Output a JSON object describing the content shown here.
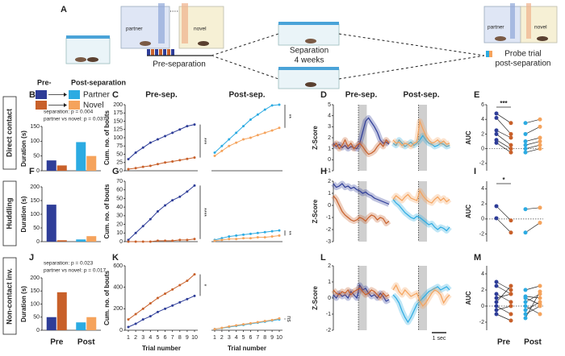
{
  "figure": {
    "panel_A": "A",
    "cage_labels": [
      "partner",
      "novel",
      "partner",
      "novel"
    ],
    "pre_step": "Pre-separation",
    "separation": [
      "Separation",
      "4 weeks"
    ],
    "probe": [
      "Probe trial",
      "post-separation"
    ],
    "legend": {
      "pre_label": "Pre-",
      "post_label": "Post-separation",
      "items": [
        {
          "name": "Partner",
          "pre_color": "#2e3d98",
          "post_color": "#2cabe2"
        },
        {
          "name": "Novel",
          "pre_color": "#c8602a",
          "post_color": "#f5a35c"
        }
      ]
    },
    "rows": [
      "Direct contact",
      "Huddling",
      "Non-contact inv."
    ]
  },
  "chart_data": [
    {
      "type": "bar",
      "panel": "B",
      "ylabel": "Duration (s)",
      "annotations": [
        "separation: p = 0.004",
        "partner vs novel: p = 0.037"
      ],
      "ylim": [
        0,
        150
      ],
      "yticks": [
        0,
        50,
        100,
        150
      ],
      "series": [
        {
          "colors": [
            "#2e3d98",
            "#2cabe2"
          ],
          "values": [
            35,
            97
          ]
        },
        {
          "colors": [
            "#c8602a",
            "#f5a35c"
          ],
          "values": [
            18,
            50
          ]
        }
      ]
    },
    {
      "type": "bar",
      "panel": "F",
      "ylabel": "Duration (s)",
      "ylim": [
        0,
        200
      ],
      "yticks": [
        0,
        50,
        100,
        150,
        200
      ],
      "series": [
        {
          "colors": [
            "#2e3d98",
            "#2cabe2"
          ],
          "values": [
            135,
            8
          ]
        },
        {
          "colors": [
            "#c8602a",
            "#f5a35c"
          ],
          "values": [
            5,
            20
          ]
        }
      ]
    },
    {
      "type": "bar",
      "panel": "J",
      "ylabel": "Duration (s)",
      "annotations": [
        "separation: p = 0.023",
        "partner vs novel: p = 0.017"
      ],
      "categories": [
        "Pre",
        "Post"
      ],
      "ylim": [
        0,
        200
      ],
      "yticks": [
        0,
        50,
        100,
        150,
        200
      ],
      "series": [
        {
          "colors": [
            "#2e3d98",
            "#2cabe2"
          ],
          "values": [
            50,
            30
          ]
        },
        {
          "colors": [
            "#c8602a",
            "#f5a35c"
          ],
          "values": [
            145,
            50
          ]
        }
      ]
    },
    {
      "type": "line",
      "panel": "C",
      "title": "Pre-sep.",
      "ylabel": "Cum. no. of bouts",
      "x": [
        1,
        2,
        3,
        4,
        5,
        6,
        7,
        8,
        9,
        10
      ],
      "xlim": [
        1,
        10
      ],
      "ylim": [
        0,
        200
      ],
      "yticks": [
        0,
        25,
        50,
        75,
        100,
        125,
        150,
        175,
        200
      ],
      "sig": "***",
      "series": [
        {
          "color": "#2e3d98",
          "values": [
            35,
            55,
            70,
            85,
            95,
            105,
            115,
            125,
            135,
            140
          ]
        },
        {
          "color": "#c8602a",
          "values": [
            5,
            8,
            12,
            15,
            20,
            25,
            28,
            32,
            36,
            40
          ]
        }
      ]
    },
    {
      "type": "line",
      "title": "Post-sep.",
      "x": [
        1,
        2,
        3,
        4,
        5,
        6,
        7,
        8,
        9,
        10
      ],
      "xlim": [
        1,
        10
      ],
      "ylim": [
        0,
        200
      ],
      "sig": "**",
      "series": [
        {
          "color": "#2cabe2",
          "values": [
            55,
            75,
            95,
            115,
            135,
            155,
            170,
            185,
            198,
            200
          ]
        },
        {
          "color": "#f5a35c",
          "values": [
            45,
            60,
            75,
            85,
            95,
            100,
            108,
            115,
            122,
            130
          ]
        }
      ]
    },
    {
      "type": "line",
      "panel": "G",
      "ylabel": "Cum. no. of bouts",
      "x": [
        1,
        2,
        3,
        4,
        5,
        6,
        7,
        8,
        9,
        10
      ],
      "xlim": [
        1,
        10
      ],
      "ylim": [
        0,
        70
      ],
      "yticks": [
        0,
        10,
        20,
        30,
        40,
        50,
        60,
        70
      ],
      "sig": "****",
      "series": [
        {
          "color": "#2e3d98",
          "values": [
            2,
            10,
            18,
            26,
            35,
            42,
            48,
            52,
            58,
            65
          ]
        },
        {
          "color": "#c8602a",
          "values": [
            0,
            0,
            0,
            0,
            1,
            1,
            1,
            2,
            2,
            3
          ]
        }
      ]
    },
    {
      "type": "line",
      "x": [
        1,
        2,
        3,
        4,
        5,
        6,
        7,
        8,
        9,
        10
      ],
      "xlim": [
        1,
        10
      ],
      "ylim": [
        0,
        70
      ],
      "sig": "**",
      "series": [
        {
          "color": "#2cabe2",
          "values": [
            2,
            4,
            6,
            7,
            8,
            9,
            10,
            11,
            12,
            13
          ]
        },
        {
          "color": "#f5a35c",
          "values": [
            1,
            2,
            3,
            3,
            4,
            4,
            5,
            5,
            6,
            7
          ]
        }
      ]
    },
    {
      "type": "line",
      "panel": "K",
      "ylabel": "Cum. no. of bouts",
      "xlabel": "Trial number",
      "x": [
        1,
        2,
        3,
        4,
        5,
        6,
        7,
        8,
        9,
        10
      ],
      "xlim": [
        1,
        10
      ],
      "xticks": [
        1,
        2,
        3,
        4,
        5,
        6,
        7,
        8,
        9,
        10
      ],
      "ylim": [
        0,
        600
      ],
      "yticks": [
        0,
        200,
        400,
        600
      ],
      "sig": "*",
      "series": [
        {
          "color": "#2e3d98",
          "values": [
            30,
            60,
            100,
            130,
            170,
            200,
            230,
            260,
            290,
            320
          ]
        },
        {
          "color": "#c8602a",
          "values": [
            100,
            150,
            200,
            250,
            300,
            340,
            380,
            420,
            460,
            520
          ]
        }
      ]
    },
    {
      "type": "line",
      "xlabel": "Trial number",
      "x": [
        1,
        2,
        3,
        4,
        5,
        6,
        7,
        8,
        9,
        10
      ],
      "xlim": [
        1,
        10
      ],
      "xticks": [
        1,
        2,
        3,
        4,
        5,
        6,
        7,
        8,
        9,
        10
      ],
      "ylim": [
        0,
        600
      ],
      "sig": "ns",
      "series": [
        {
          "color": "#2cabe2",
          "values": [
            10,
            20,
            30,
            40,
            50,
            60,
            70,
            80,
            90,
            100
          ]
        },
        {
          "color": "#f5a35c",
          "values": [
            10,
            22,
            35,
            45,
            55,
            65,
            75,
            85,
            95,
            110
          ]
        }
      ]
    },
    {
      "type": "line",
      "panel": "D",
      "title": "Pre-sep.",
      "ylabel": "Z-Score",
      "ylim": [
        -1,
        5
      ],
      "yticks": [
        -1,
        0,
        1,
        2,
        3,
        4,
        5
      ],
      "series": [
        {
          "color": "#2e3d98",
          "values": [
            1.5,
            1.2,
            1.4,
            1.1,
            1.3,
            1.0,
            1.2,
            1.1,
            1.0,
            1.5,
            2.5,
            3.5,
            3.8,
            3.4,
            3.0,
            2.5,
            1.8,
            1.5,
            1.6,
            1.4
          ]
        },
        {
          "color": "#c8602a",
          "values": [
            1.2,
            1.5,
            1.0,
            1.3,
            1.8,
            1.2,
            1.5,
            1.0,
            1.3,
            1.5,
            1.2,
            0.8,
            0.5,
            0.6,
            0.8,
            1.2,
            1.5,
            1.2,
            1.8,
            1.5
          ]
        }
      ]
    },
    {
      "type": "line",
      "title": "Post-sep.",
      "ylim": [
        -1,
        5
      ],
      "series": [
        {
          "color": "#2cabe2",
          "values": [
            1.5,
            1.3,
            1.8,
            1.5,
            1.2,
            1.4,
            1.6,
            1.3,
            1.5,
            1.8,
            2.2,
            1.8,
            1.5,
            1.4,
            1.2,
            1.3,
            1.5,
            1.4,
            1.2,
            1.3
          ]
        },
        {
          "color": "#f5a35c",
          "values": [
            1.8,
            1.5,
            1.6,
            1.3,
            1.5,
            1.4,
            1.2,
            1.5,
            1.6,
            3.5,
            2.8,
            2.2,
            1.8,
            1.5,
            1.6,
            1.8,
            1.5,
            1.7,
            1.4,
            1.5
          ]
        }
      ]
    },
    {
      "type": "line",
      "panel": "H",
      "ylabel": "Z-Score",
      "ylim": [
        -3,
        2
      ],
      "yticks": [
        -3,
        -2,
        -1,
        0,
        1,
        2
      ],
      "series": [
        {
          "color": "#2e3d98",
          "values": [
            1.8,
            1.5,
            1.6,
            1.8,
            1.5,
            1.6,
            1.4,
            1.5,
            1.3,
            1.2,
            1.0,
            1.1,
            0.9,
            0.8,
            0.6,
            0.5,
            0.4,
            0.3,
            0.2,
            0.1
          ]
        },
        {
          "color": "#c8602a",
          "values": [
            0.8,
            0.5,
            0,
            -0.5,
            -0.8,
            -1.0,
            -1.2,
            -1.3,
            -1.2,
            -1.0,
            -1.1,
            -1.3,
            -1.0,
            -0.8,
            -0.9,
            -1.2,
            -1.0,
            -1.1,
            -1.5,
            -1.3
          ]
        }
      ]
    },
    {
      "type": "line",
      "ylim": [
        -3,
        2
      ],
      "series": [
        {
          "color": "#2cabe2",
          "values": [
            0.5,
            0.2,
            0,
            -0.3,
            -0.6,
            -0.8,
            -1.0,
            -1.1,
            -0.9,
            -1.0,
            -1.2,
            -1.4,
            -1.6,
            -1.5,
            -1.8,
            -2.0,
            -1.8,
            -1.9,
            -2.1,
            -1.8
          ]
        },
        {
          "color": "#f5a35c",
          "values": [
            0.5,
            0.8,
            0.6,
            0.4,
            0.7,
            0.9,
            0.6,
            0.5,
            0.4,
            1.2,
            0.8,
            0.5,
            0.3,
            0.2,
            0.5,
            0.7,
            0.4,
            0.6,
            0.3,
            0.5
          ]
        }
      ]
    },
    {
      "type": "line",
      "panel": "L",
      "ylabel": "Z-Score",
      "ylim": [
        -2,
        2
      ],
      "yticks": [
        -2,
        -1,
        0,
        1,
        2
      ],
      "series": [
        {
          "color": "#2e3d98",
          "values": [
            0.2,
            0,
            0.3,
            0.1,
            0.2,
            0,
            0.4,
            0.2,
            0,
            0.8,
            0.5,
            0.6,
            0.3,
            0.1,
            0.2,
            0,
            0.3,
            0.1,
            -0.2,
            -0.1
          ]
        },
        {
          "color": "#c8602a",
          "values": [
            0.5,
            0.3,
            0.2,
            0.4,
            0.3,
            0.5,
            0.2,
            0.4,
            0.5,
            0.6,
            0.4,
            0.2,
            0.3,
            0.5,
            0.4,
            0.2,
            0,
            0.3,
            0.1,
            0.2
          ]
        }
      ]
    },
    {
      "type": "line",
      "ylim": [
        -2,
        2
      ],
      "scale_bar": "1 sec",
      "series": [
        {
          "color": "#2cabe2",
          "values": [
            0.2,
            0,
            -0.3,
            -0.8,
            -1.2,
            -1.5,
            -1.2,
            -0.8,
            -0.4,
            -0.2,
            0,
            0.2,
            0.4,
            0.5,
            0.6,
            0.7,
            0.5,
            0.6,
            0.7,
            0.5
          ]
        },
        {
          "color": "#f5a35c",
          "values": [
            0.5,
            0.8,
            0.4,
            0.2,
            0.5,
            0.3,
            0.1,
            0.2,
            0.3,
            -0.2,
            -0.5,
            -0.3,
            0,
            0.3,
            0.5,
            0.4,
            0.2,
            -0.3,
            0,
            0.2
          ]
        }
      ]
    },
    {
      "type": "strip",
      "panel": "E",
      "ylabel": "AUC",
      "ylim": [
        -3,
        6
      ],
      "yticks": [
        -2,
        0,
        2,
        4,
        6
      ],
      "zero_line": true,
      "sig": "***",
      "series": [
        {
          "color": "#2e3d98",
          "values": [
            4.8,
            4.2,
            2.5,
            2.0,
            1.2,
            0.8
          ]
        },
        {
          "color": "#c8602a",
          "values": [
            3.5,
            2.0,
            1.5,
            0.5,
            0,
            -0.5
          ]
        },
        {
          "color": "#2cabe2",
          "values": [
            3.5,
            2.0,
            1.0,
            0.5,
            0,
            -0.5
          ]
        },
        {
          "color": "#f5a35c",
          "values": [
            4.0,
            3.0,
            1.5,
            1.0,
            0.5,
            0
          ]
        }
      ]
    },
    {
      "type": "strip",
      "panel": "I",
      "ylabel": "AUC",
      "ylim": [
        -3,
        5
      ],
      "yticks": [
        -2,
        0,
        2,
        4
      ],
      "zero_line": true,
      "sig": "*",
      "series": [
        {
          "color": "#2e3d98",
          "values": [
            1.7,
            0.1
          ]
        },
        {
          "color": "#c8602a",
          "values": [
            -0.2,
            -1.8
          ]
        },
        {
          "color": "#2cabe2",
          "values": [
            1.3,
            -1.8
          ]
        },
        {
          "color": "#f5a35c",
          "values": [
            1.5,
            -0.5
          ]
        }
      ]
    },
    {
      "type": "strip",
      "panel": "M",
      "ylabel": "AUC",
      "categories": [
        "Pre",
        "Post"
      ],
      "ylim": [
        -3,
        5
      ],
      "yticks": [
        -2,
        0,
        2,
        4
      ],
      "zero_line": true,
      "series": [
        {
          "color": "#2e3d98",
          "values": [
            3,
            2.5,
            1.5,
            1,
            0.5,
            0,
            -0.5,
            -1
          ]
        },
        {
          "color": "#c8602a",
          "values": [
            2,
            1.5,
            0.5,
            1.5,
            2.5,
            -1,
            0,
            -1.8
          ]
        },
        {
          "color": "#2cabe2",
          "values": [
            2,
            1.2,
            0.5,
            0,
            -0.5,
            -1,
            -1.5,
            1
          ]
        },
        {
          "color": "#f5a35c",
          "values": [
            2.5,
            1,
            1.5,
            -1,
            0.5,
            0,
            1.8,
            0.2
          ]
        }
      ]
    }
  ]
}
